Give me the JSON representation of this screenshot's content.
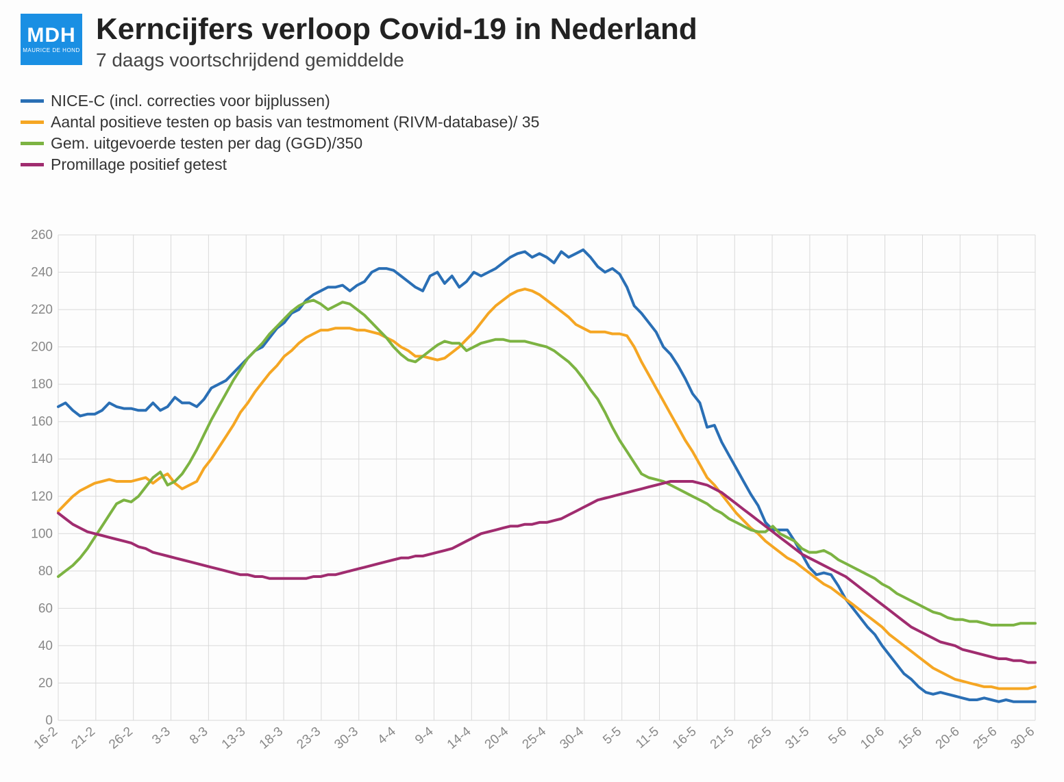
{
  "logo": {
    "main": "MDH",
    "sub": "MAURICE DE HOND"
  },
  "title": "Kerncijfers verloop Covid-19 in Nederland",
  "subtitle": "7 daags voortschrijdend gemiddelde",
  "chart": {
    "type": "line",
    "background_color": "#fdfdfd",
    "grid_color": "#d9d9d9",
    "axis_label_color": "#888888",
    "axis_label_fontsize": 19,
    "line_width": 4,
    "ylim": [
      0,
      260
    ],
    "ytick_step": 20,
    "x_labels": [
      "16-2",
      "21-2",
      "26-2",
      "3-3",
      "8-3",
      "13-3",
      "18-3",
      "23-3",
      "30-3",
      "4-4",
      "9-4",
      "14-4",
      "20-4",
      "25-4",
      "30-4",
      "5-5",
      "11-5",
      "16-5",
      "21-5",
      "26-5",
      "31-5",
      "5-6",
      "10-6",
      "15-6",
      "20-6",
      "25-6",
      "30-6"
    ],
    "x_label_rotation": -40,
    "series": [
      {
        "label": "NICE-C (incl. correcties voor bijplussen)",
        "color": "#2a6fb5",
        "values": [
          168,
          170,
          166,
          163,
          164,
          164,
          166,
          170,
          168,
          167,
          167,
          166,
          166,
          170,
          166,
          168,
          173,
          170,
          170,
          168,
          172,
          178,
          180,
          182,
          186,
          190,
          194,
          198,
          200,
          205,
          210,
          213,
          218,
          220,
          225,
          228,
          230,
          232,
          232,
          233,
          230,
          233,
          235,
          240,
          242,
          242,
          241,
          238,
          235,
          232,
          230,
          238,
          240,
          234,
          238,
          232,
          235,
          240,
          238,
          240,
          242,
          245,
          248,
          250,
          251,
          248,
          250,
          248,
          245,
          251,
          248,
          250,
          252,
          248,
          243,
          240,
          242,
          239,
          232,
          222,
          218,
          213,
          208,
          200,
          196,
          190,
          183,
          175,
          170,
          157,
          158,
          149,
          142,
          135,
          128,
          121,
          115,
          106,
          102,
          102,
          102,
          96,
          89,
          82,
          78,
          79,
          78,
          72,
          65,
          60,
          55,
          50,
          46,
          40,
          35,
          30,
          25,
          22,
          18,
          15,
          14,
          15,
          14,
          13,
          12,
          11,
          11,
          12,
          11,
          10,
          11,
          10,
          10,
          10,
          10
        ]
      },
      {
        "label": "Aantal positieve testen op basis van testmoment (RIVM-database)/ 35",
        "color": "#f5a623",
        "values": [
          112,
          116,
          120,
          123,
          125,
          127,
          128,
          129,
          128,
          128,
          128,
          129,
          130,
          127,
          130,
          132,
          127,
          124,
          126,
          128,
          135,
          140,
          146,
          152,
          158,
          165,
          170,
          176,
          181,
          186,
          190,
          195,
          198,
          202,
          205,
          207,
          209,
          209,
          210,
          210,
          210,
          209,
          209,
          208,
          207,
          205,
          203,
          200,
          198,
          195,
          195,
          194,
          193,
          194,
          197,
          200,
          204,
          208,
          213,
          218,
          222,
          225,
          228,
          230,
          231,
          230,
          228,
          225,
          222,
          219,
          216,
          212,
          210,
          208,
          208,
          208,
          207,
          207,
          206,
          200,
          192,
          185,
          178,
          171,
          164,
          157,
          150,
          144,
          137,
          130,
          126,
          121,
          116,
          111,
          107,
          103,
          100,
          96,
          93,
          90,
          87,
          85,
          82,
          79,
          76,
          73,
          71,
          68,
          65,
          62,
          59,
          56,
          53,
          50,
          46,
          43,
          40,
          37,
          34,
          31,
          28,
          26,
          24,
          22,
          21,
          20,
          19,
          18,
          18,
          17,
          17,
          17,
          17,
          17,
          18
        ]
      },
      {
        "label": "Gem. uitgevoerde testen per dag (GGD)/350",
        "color": "#7cb342",
        "values": [
          77,
          80,
          83,
          87,
          92,
          98,
          104,
          110,
          116,
          118,
          117,
          120,
          125,
          130,
          133,
          126,
          128,
          132,
          138,
          145,
          153,
          161,
          168,
          175,
          182,
          188,
          194,
          198,
          202,
          207,
          211,
          215,
          219,
          222,
          224,
          225,
          223,
          220,
          222,
          224,
          223,
          220,
          217,
          213,
          209,
          205,
          200,
          196,
          193,
          192,
          195,
          198,
          201,
          203,
          202,
          202,
          198,
          200,
          202,
          203,
          204,
          204,
          203,
          203,
          203,
          202,
          201,
          200,
          198,
          195,
          192,
          188,
          183,
          177,
          172,
          165,
          157,
          150,
          144,
          138,
          132,
          130,
          129,
          128,
          126,
          124,
          122,
          120,
          118,
          116,
          113,
          111,
          108,
          106,
          104,
          102,
          101,
          101,
          104,
          100,
          98,
          96,
          92,
          90,
          90,
          91,
          89,
          86,
          84,
          82,
          80,
          78,
          76,
          73,
          71,
          68,
          66,
          64,
          62,
          60,
          58,
          57,
          55,
          54,
          54,
          53,
          53,
          52,
          51,
          51,
          51,
          51,
          52,
          52,
          52
        ]
      },
      {
        "label": "Promillage positief getest",
        "color": "#a02c6f",
        "values": [
          111,
          108,
          105,
          103,
          101,
          100,
          99,
          98,
          97,
          96,
          95,
          93,
          92,
          90,
          89,
          88,
          87,
          86,
          85,
          84,
          83,
          82,
          81,
          80,
          79,
          78,
          78,
          77,
          77,
          76,
          76,
          76,
          76,
          76,
          76,
          77,
          77,
          78,
          78,
          79,
          80,
          81,
          82,
          83,
          84,
          85,
          86,
          87,
          87,
          88,
          88,
          89,
          90,
          91,
          92,
          94,
          96,
          98,
          100,
          101,
          102,
          103,
          104,
          104,
          105,
          105,
          106,
          106,
          107,
          108,
          110,
          112,
          114,
          116,
          118,
          119,
          120,
          121,
          122,
          123,
          124,
          125,
          126,
          127,
          128,
          128,
          128,
          128,
          127,
          126,
          124,
          122,
          119,
          116,
          113,
          110,
          107,
          104,
          101,
          98,
          95,
          92,
          89,
          87,
          85,
          83,
          81,
          79,
          77,
          74,
          71,
          68,
          65,
          62,
          59,
          56,
          53,
          50,
          48,
          46,
          44,
          42,
          41,
          40,
          38,
          37,
          36,
          35,
          34,
          33,
          33,
          32,
          32,
          31,
          31
        ]
      }
    ]
  }
}
